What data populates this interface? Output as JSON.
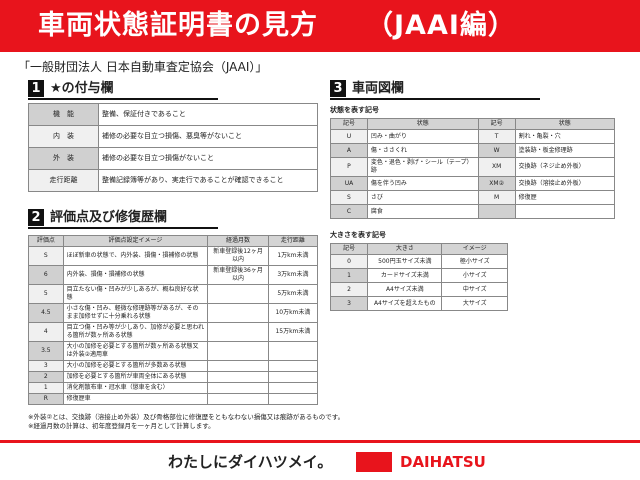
{
  "title": "車両状態証明書の見方",
  "title_sub": "（JAAI編）",
  "org": "「一般財団法人 日本自動車査定協会（JAAI）」",
  "s1": {
    "num": "1",
    "title": "★の付与欄",
    "rows": [
      [
        "機　能",
        "整備、保証付きであること"
      ],
      [
        "内　装",
        "補修の必要な目立つ損傷、悪臭等がないこと"
      ],
      [
        "外　装",
        "補修の必要な目立つ損傷がないこと"
      ],
      [
        "走行距離",
        "整備記録簿等があり、実走行であることが確認できること"
      ]
    ]
  },
  "s2": {
    "num": "2",
    "title": "評価点及び修復歴欄",
    "headers": [
      "評価点",
      "評価点設定イメージ",
      "経過月数",
      "走行距離"
    ],
    "rows": [
      [
        "S",
        "ほぼ新車の状態で、内外装、損傷・損補修の状態",
        "新車登録後12ヶ月以内",
        "1万km未満"
      ],
      [
        "6",
        "内外装、損傷・損補修の状態",
        "新車登録後36ヶ月以内",
        "3万km未満"
      ],
      [
        "5",
        "目立たない傷・凹みが少しあるが、概ね良好な状態",
        "",
        "5万km未満"
      ],
      [
        "4.5",
        "小さな傷・凹み、軽微な修理跡等があるが、そのまま加修せずに十分乗れる状態",
        "",
        "10万km未満"
      ],
      [
        "4",
        "目立つ傷・凹み等が少しあり、加修が必要と思われる箇所が数ヶ所ある状態",
        "",
        "15万km未満"
      ],
      [
        "3.5",
        "大小の加修を必要とする箇所が数ヶ所ある状態又は外装②適用車",
        "",
        ""
      ],
      [
        "3",
        "大小の加修を必要とする箇所が多数ある状態",
        "",
        ""
      ],
      [
        "2",
        "加修を必要とする箇所が車両全体にある状態",
        "",
        ""
      ],
      [
        "1",
        "消化剤散布車・冠水車（懲車を含む）",
        "",
        ""
      ],
      [
        "R",
        "修復歴車",
        "",
        ""
      ]
    ],
    "notes": [
      "※外装②とは、交換跡（溶接止め外装）及び骨格部位に修復歴をともなわない損傷又は痕跡があるものです。",
      "※経過月数の計算は、初年度登録月を一ヶ月として計算します。"
    ]
  },
  "s3": {
    "num": "3",
    "title": "車両図欄",
    "state_label": "状態を表す記号",
    "state_headers": [
      "記号",
      "状態",
      "記号",
      "状態"
    ],
    "state_rows": [
      [
        "U",
        "凹み・曲がり",
        "T",
        "割れ・亀裂・穴"
      ],
      [
        "A",
        "傷・ささくれ",
        "W",
        "塗装跡・板金修理跡"
      ],
      [
        "P",
        "変色・退色・剥げ・シール（テープ）跡",
        "XM",
        "交換跡（ネジ止め外板）"
      ],
      [
        "UA",
        "傷を伴う凹み",
        "XM②",
        "交換跡（溶接止め外板）"
      ],
      [
        "S",
        "さび",
        "M",
        "修復歴"
      ],
      [
        "C",
        "腐食",
        "",
        ""
      ]
    ],
    "size_label": "大きさを表す記号",
    "size_headers": [
      "記号",
      "大きさ",
      "イメージ"
    ],
    "size_rows": [
      [
        "0",
        "500円玉サイズ未満",
        "極小サイズ"
      ],
      [
        "1",
        "カードサイズ未満",
        "小サイズ"
      ],
      [
        "2",
        "A4サイズ未満",
        "中サイズ"
      ],
      [
        "3",
        "A4サイズを超えたもの",
        "大サイズ"
      ]
    ]
  },
  "footer": {
    "slogan": "わたしにダイハツメイ。",
    "brand": "DAIHATSU",
    "brand_color": "#e8141c"
  }
}
